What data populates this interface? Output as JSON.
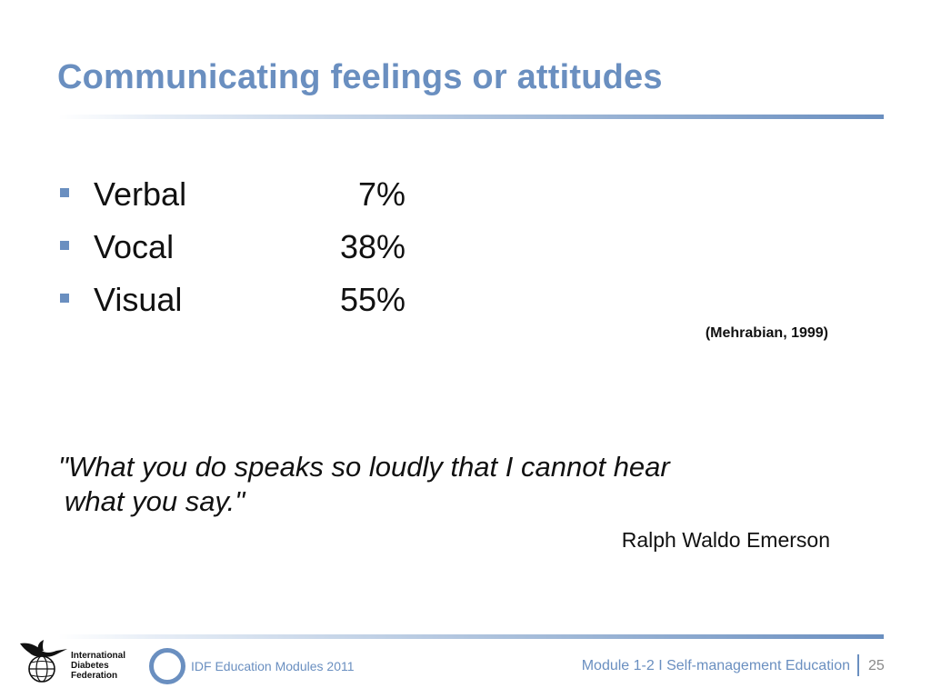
{
  "slide": {
    "title": "Communicating feelings or attitudes",
    "bullets": [
      {
        "label": "Verbal",
        "value": "7%"
      },
      {
        "label": "Vocal",
        "value": "38%"
      },
      {
        "label": "Visual",
        "value": "55%"
      }
    ],
    "citation": "(Mehrabian, 1999)",
    "quote": {
      "line1": "\"What you do speaks so loudly that I cannot hear",
      "line2": "what you say.\"",
      "author": "Ralph Waldo Emerson"
    }
  },
  "footer": {
    "logo": {
      "line1": "International",
      "line2": "Diabetes",
      "line3": "Federation"
    },
    "left_text": "IDF Education Modules 2011",
    "right_text": "Module 1-2 I Self-management Education",
    "page_number": "25"
  },
  "colors": {
    "accent": "#6a8fc0",
    "text": "#111111",
    "page_number": "#8a8a8a"
  },
  "icons": {
    "logo": "idf-hummingbird-globe-icon",
    "footer": "ring-icon",
    "bullet": "square-bullet-icon"
  }
}
